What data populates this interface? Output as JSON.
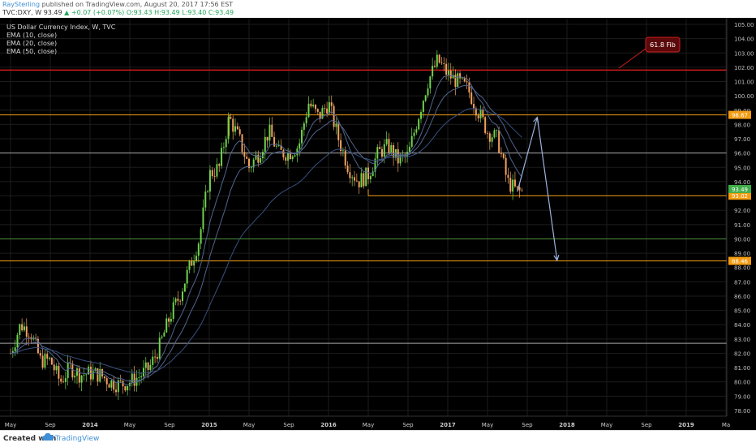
{
  "header": {
    "author": "RaySterling",
    "published": "published on TradingView.com, August 20, 2017 17:56 EST",
    "symbol_line": "TVC:DXY, W  93.49",
    "change": "+0.07 (+0.07%)",
    "ohlc": "O:93.43  H:93.49  L:93.40  C:93.49"
  },
  "footer": {
    "created_with": "Created with",
    "brand": "TradingView"
  },
  "colors": {
    "background": "#000000",
    "grid": "#1c1c1c",
    "up": "#6fd34e",
    "down": "#f3a260",
    "fib": "#d11d1d",
    "orange": "#f39c12",
    "support": "#a5a5a5",
    "green_line": "#4b8e3d",
    "ema_fast": "#52658f",
    "ema_slow": "#38517f",
    "arrow": "#9db3df"
  },
  "chart_data": {
    "type": "candlestick",
    "title": "US Dollar Currency Index, W, TVC",
    "indicators": [
      "EMA (10, close)",
      "EMA (20, close)",
      "EMA (50, close)"
    ],
    "interval": "W",
    "ylim": [
      78,
      105
    ],
    "y_ticks": [
      78,
      79,
      80,
      81,
      82,
      83,
      84,
      85,
      86,
      87,
      88,
      89,
      90,
      91,
      92,
      93,
      94,
      95,
      96,
      97,
      98,
      99,
      100,
      101,
      102,
      103,
      104,
      105
    ],
    "x_tick_labels": [
      "May",
      "Sep",
      "2014",
      "May",
      "Sep",
      "2015",
      "May",
      "Sep",
      "2016",
      "May",
      "Sep",
      "2017",
      "May",
      "Sep",
      "2018",
      "May",
      "Sep",
      "2019",
      "Ma"
    ],
    "x_tick_dates": [
      "2013-05",
      "2013-09",
      "2014-01",
      "2014-05",
      "2014-09",
      "2015-01",
      "2015-05",
      "2015-09",
      "2016-01",
      "2016-05",
      "2016-09",
      "2017-01",
      "2017-05",
      "2017-09",
      "2018-01",
      "2018-05",
      "2018-09",
      "2019-01",
      "2019-05"
    ],
    "waypoints": [
      [
        "2013-05",
        82.0
      ],
      [
        "2013-06",
        84.0
      ],
      [
        "2013-07",
        83.5
      ],
      [
        "2013-08",
        81.5
      ],
      [
        "2013-09",
        81.5
      ],
      [
        "2013-10",
        80.0
      ],
      [
        "2013-11",
        81.0
      ],
      [
        "2013-12",
        80.5
      ],
      [
        "2014-01",
        80.6
      ],
      [
        "2014-02",
        80.5
      ],
      [
        "2014-03",
        80.0
      ],
      [
        "2014-04",
        79.8
      ],
      [
        "2014-05",
        80.0
      ],
      [
        "2014-06",
        80.4
      ],
      [
        "2014-07",
        81.0
      ],
      [
        "2014-08",
        82.5
      ],
      [
        "2014-09",
        84.5
      ],
      [
        "2014-10",
        86.0
      ],
      [
        "2014-11",
        88.0
      ],
      [
        "2014-12",
        90.0
      ],
      [
        "2015-01",
        94.5
      ],
      [
        "2015-02",
        95.0
      ],
      [
        "2015-03",
        98.5
      ],
      [
        "2015-04",
        97.0
      ],
      [
        "2015-05",
        95.0
      ],
      [
        "2015-06",
        96.0
      ],
      [
        "2015-07",
        97.5
      ],
      [
        "2015-08",
        96.0
      ],
      [
        "2015-09",
        96.0
      ],
      [
        "2015-10",
        96.5
      ],
      [
        "2015-11",
        99.5
      ],
      [
        "2015-12",
        98.5
      ],
      [
        "2016-01",
        99.5
      ],
      [
        "2016-02",
        97.0
      ],
      [
        "2016-03",
        95.0
      ],
      [
        "2016-04",
        94.0
      ],
      [
        "2016-05",
        94.5
      ],
      [
        "2016-06",
        96.0
      ],
      [
        "2016-07",
        96.5
      ],
      [
        "2016-08",
        95.5
      ],
      [
        "2016-09",
        95.8
      ],
      [
        "2016-10",
        98.5
      ],
      [
        "2016-11",
        101.0
      ],
      [
        "2016-12",
        102.5
      ],
      [
        "2017-01",
        101.5
      ],
      [
        "2017-02",
        101.0
      ],
      [
        "2017-03",
        100.5
      ],
      [
        "2017-04",
        99.0
      ],
      [
        "2017-05",
        97.5
      ],
      [
        "2017-06",
        97.0
      ],
      [
        "2017-07",
        94.0
      ],
      [
        "2017-08",
        93.3
      ]
    ],
    "horizontal_levels": [
      {
        "value": 101.8,
        "color": "fib"
      },
      {
        "value": 98.67,
        "color": "orange",
        "label": "98.67"
      },
      {
        "value": 96.0,
        "color": "support"
      },
      {
        "value": 93.02,
        "color": "orange",
        "label": "93.02",
        "start": "2016-05"
      },
      {
        "value": 90.0,
        "color": "green_line"
      },
      {
        "value": 88.46,
        "color": "orange",
        "label": "88.46"
      },
      {
        "value": 82.7,
        "color": "support"
      }
    ],
    "last_price": "93.49",
    "annotation": "61.8 Fib",
    "projection": [
      [
        "2017-08",
        93.3
      ],
      [
        "2017-10",
        98.5
      ],
      [
        "2017-12",
        88.5
      ]
    ]
  }
}
